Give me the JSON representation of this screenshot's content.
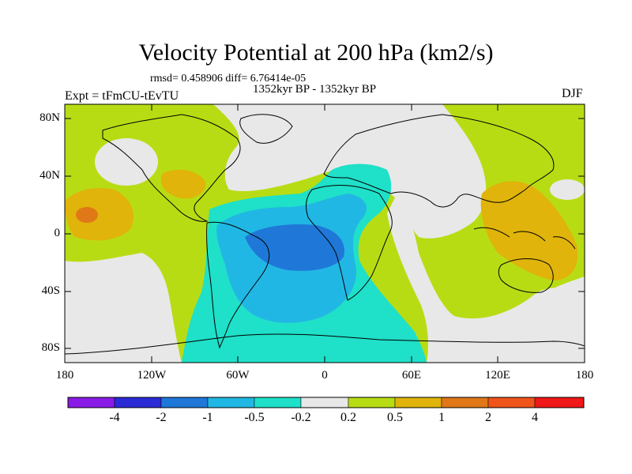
{
  "title": "Velocity Potential at 200 hPa (km2/s)",
  "stats": "rmsd= 0.458906 diff= 6.76414e-05",
  "period": "1352kyr BP - 1352kyr BP",
  "experiment": "Expt = tFmCU-tEvTU",
  "season": "DJF",
  "y_ticks": [
    "80N",
    "40N",
    "0",
    "40S",
    "80S"
  ],
  "x_ticks": [
    "180",
    "120W",
    "60W",
    "0",
    "60E",
    "120E",
    "180"
  ],
  "colorbar": {
    "labels": [
      "-4",
      "-2",
      "-1",
      "-0.5",
      "-0.2",
      "0.2",
      "0.5",
      "1",
      "2",
      "4"
    ],
    "colors": [
      "#8a1be6",
      "#2a2ad6",
      "#1f78d8",
      "#21b7e4",
      "#1fe0c8",
      "#e8e8e8",
      "#b8dc14",
      "#e0b40a",
      "#e07818",
      "#f0541a",
      "#f01818"
    ]
  },
  "field_colors": {
    "strong_negative": "#1f78d8",
    "moderate_negative": "#21b7e4",
    "weak_negative": "#1fe0c8",
    "neutral": "#e8e8e8",
    "weak_positive": "#b8dc14",
    "moderate_positive": "#e0b40a",
    "strong_positive": "#e07818",
    "coastline": "#000000"
  }
}
